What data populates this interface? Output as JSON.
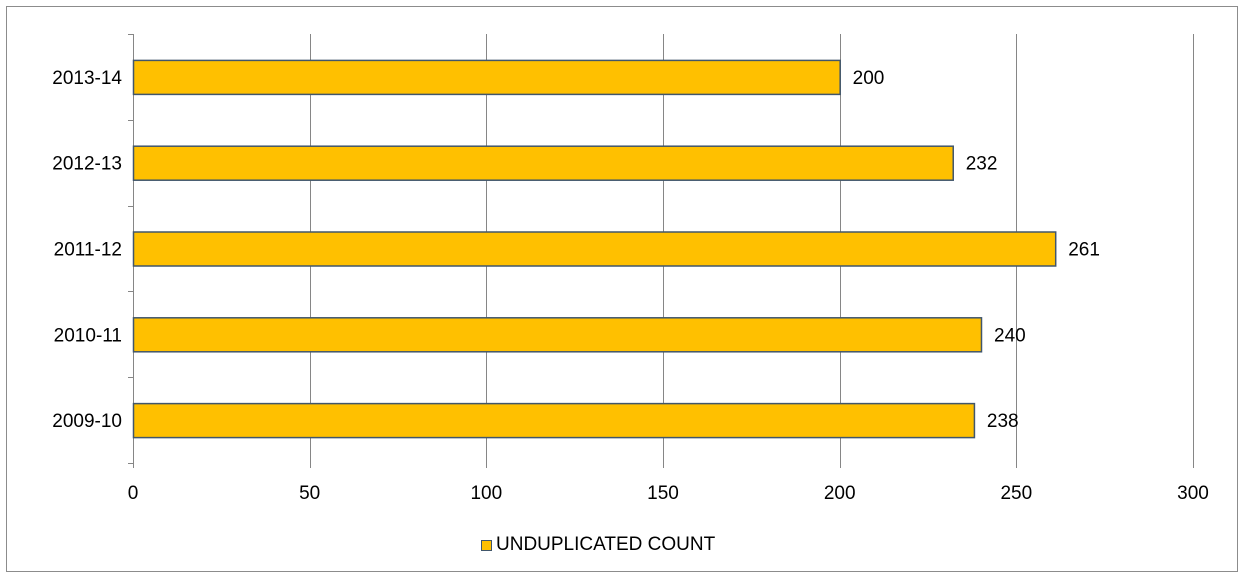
{
  "chart_data": {
    "type": "bar",
    "orientation": "horizontal",
    "title": "",
    "xlabel": "",
    "ylabel": "",
    "categories": [
      "2013-14",
      "2012-13",
      "2011-12",
      "2010-11",
      "2009-10"
    ],
    "series": [
      {
        "name": "UNDUPLICATED COUNT",
        "values": [
          200,
          232,
          261,
          240,
          238
        ],
        "color": "#FFC000",
        "border_color": "#41566B"
      }
    ],
    "data_labels": [
      "200",
      "232",
      "261",
      "240",
      "238"
    ],
    "xlim": [
      0,
      300
    ],
    "xticks": [
      0,
      50,
      100,
      150,
      200,
      250,
      300
    ],
    "xtick_labels": [
      "0",
      "50",
      "100",
      "150",
      "200",
      "250",
      "300"
    ],
    "grid": true,
    "legend_position": "bottom"
  },
  "legend": {
    "label": "UNDUPLICATED COUNT"
  }
}
